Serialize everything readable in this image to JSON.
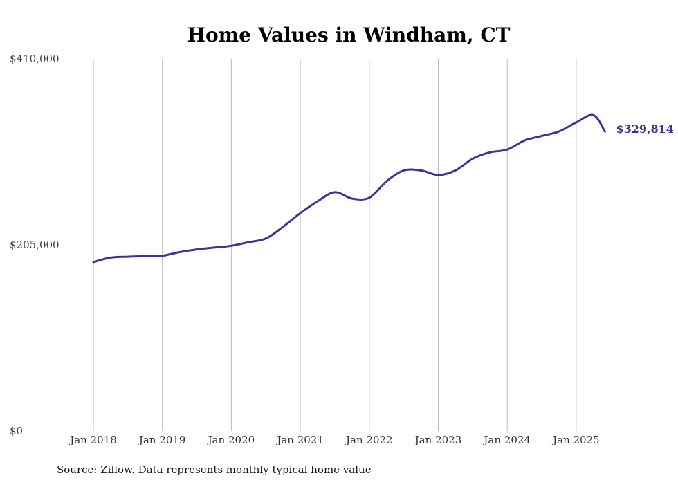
{
  "chart_data": {
    "type": "line",
    "title": "Home Values in Windham, CT",
    "source": "Source: Zillow. Data represents monthly typical home value",
    "ylim": [
      0,
      410000
    ],
    "y_tick_values": [
      0,
      205000,
      410000
    ],
    "y_tick_labels": [
      "$0",
      "$205,000",
      "$410,000"
    ],
    "x_tick_labels": [
      "Jan 2018",
      "Jan 2019",
      "Jan 2020",
      "Jan 2021",
      "Jan 2022",
      "Jan 2023",
      "Jan 2024",
      "Jan 2025"
    ],
    "grid": "vertical",
    "line_color": "#3b3494",
    "end_label": "$329,814",
    "series": [
      {
        "x": [
          "2018-01",
          "2018-04",
          "2018-07",
          "2018-10",
          "2019-01",
          "2019-04",
          "2019-07",
          "2019-10",
          "2020-01",
          "2020-04",
          "2020-07",
          "2020-10",
          "2021-01",
          "2021-04",
          "2021-07",
          "2021-10",
          "2022-01",
          "2022-04",
          "2022-07",
          "2022-10",
          "2023-01",
          "2023-04",
          "2023-07",
          "2023-10",
          "2024-01",
          "2024-04",
          "2024-07",
          "2024-10",
          "2025-01",
          "2025-04",
          "2025-06"
        ],
        "values": [
          186000,
          191000,
          192000,
          192500,
          193000,
          197000,
          200000,
          202000,
          204000,
          208000,
          212000,
          225000,
          240000,
          253000,
          263000,
          256000,
          257000,
          275000,
          287000,
          287000,
          282000,
          287000,
          300000,
          307000,
          310000,
          320000,
          325000,
          330000,
          340000,
          348000,
          329814
        ]
      }
    ]
  }
}
